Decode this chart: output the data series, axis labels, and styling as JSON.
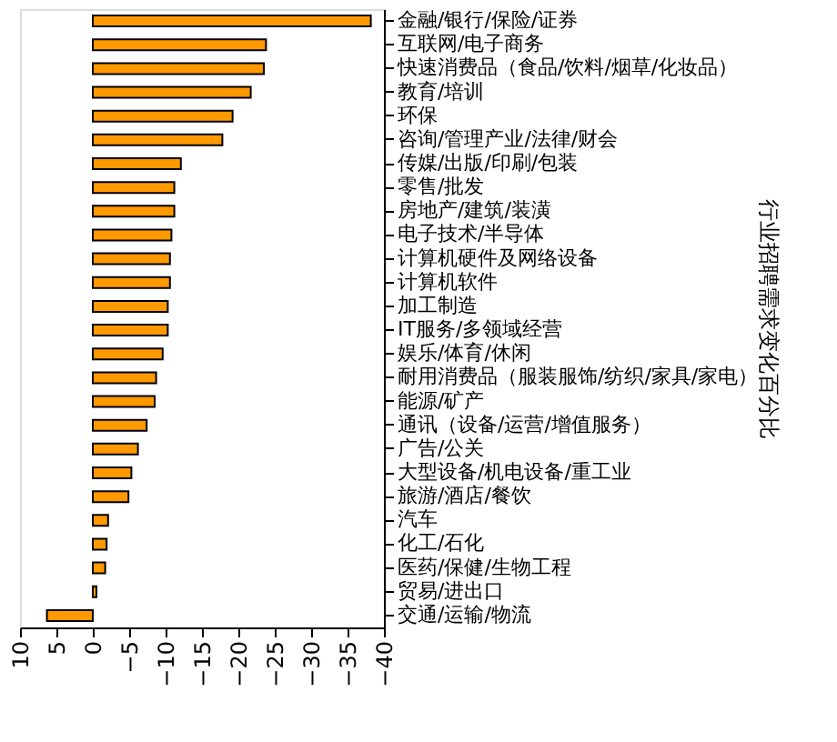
{
  "chart_data": {
    "type": "bar",
    "orientation": "horizontal",
    "ylabel": "行业招聘需求变化百分比",
    "categories": [
      "金融/银行/保险/证券",
      "互联网/电子商务",
      "快速消费品（食品/饮料/烟草/化妆品）",
      "教育/培训",
      "环保",
      "咨询/管理产业/法律/财会",
      "传媒/出版/印刷/包装",
      "零售/批发",
      "房地产/建筑/装潢",
      "电子技术/半导体",
      "计算机硬件及网络设备",
      "计算机软件",
      "加工制造",
      "IT服务/多领域经营",
      "娱乐/体育/休闲",
      "耐用消费品（服装服饰/纺织/家具/家电）",
      "能源/矿产",
      "通讯（设备/运营/增值服务）",
      "广告/公关",
      "大型设备/机电设备/重工业",
      "旅游/酒店/餐饮",
      "汽车",
      "化工/石化",
      "医药/保健/生物工程",
      "贸易/进出口",
      "交通/运输/物流"
    ],
    "values": [
      -38.2,
      -23.8,
      -23.5,
      -21.7,
      -19.2,
      -17.8,
      -12.1,
      -11.2,
      -11.2,
      -10.8,
      -10.6,
      -10.6,
      -10.3,
      -10.3,
      -9.6,
      -8.7,
      -8.5,
      -7.4,
      -6.2,
      -5.3,
      -4.9,
      -2.1,
      -1.9,
      -1.7,
      -0.5,
      6.3
    ],
    "color": "#ff9900",
    "xlim": [
      10,
      -40
    ],
    "xticks": [
      10,
      5,
      0,
      -5,
      -10,
      -15,
      -20,
      -25,
      -30,
      -35,
      -40
    ],
    "grid": false
  }
}
